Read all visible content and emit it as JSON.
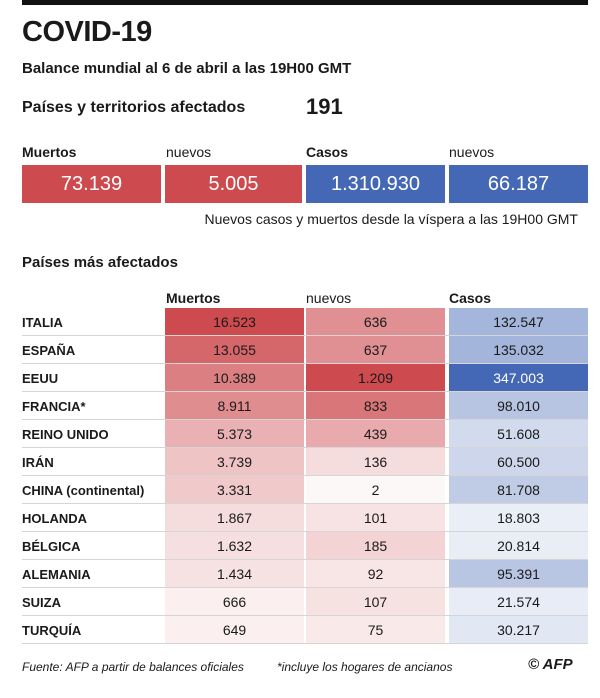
{
  "title": "COVID-19",
  "subtitle": "Balance mundial al 6 de abril a las 19H00 GMT",
  "affected": {
    "label": "Países y territorios afectados",
    "value": "191"
  },
  "totals": {
    "deaths_label": "Muertos",
    "deaths_value": "73.139",
    "new_deaths_label": "nuevos",
    "new_deaths_value": "5.005",
    "cases_label": "Casos",
    "cases_value": "1.310.930",
    "new_cases_label": "nuevos",
    "new_cases_value": "66.187",
    "note": "Nuevos casos y muertos desde la víspera a las 19H00 GMT"
  },
  "colors": {
    "red": "#cd4a4e",
    "blue": "#4468b5",
    "red_rgb": [
      205,
      74,
      78
    ],
    "blue_rgb": [
      68,
      104,
      181
    ]
  },
  "chart_data": {
    "type": "table",
    "title": "Países más afectados",
    "columns": [
      "Muertos",
      "nuevos",
      "Casos"
    ],
    "rows": [
      {
        "country": "ITALIA",
        "deaths": 16523,
        "new_deaths": 636,
        "cases": 132547,
        "deaths_text": "16.523",
        "new_text": "636",
        "cases_text": "132.547"
      },
      {
        "country": "ESPAÑA",
        "deaths": 13055,
        "new_deaths": 637,
        "cases": 135032,
        "deaths_text": "13.055",
        "new_text": "637",
        "cases_text": "135.032"
      },
      {
        "country": "EEUU",
        "deaths": 10389,
        "new_deaths": 1209,
        "cases": 347003,
        "deaths_text": "10.389",
        "new_text": "1.209",
        "cases_text": "347.003"
      },
      {
        "country": "FRANCIA*",
        "deaths": 8911,
        "new_deaths": 833,
        "cases": 98010,
        "deaths_text": "8.911",
        "new_text": "833",
        "cases_text": "98.010"
      },
      {
        "country": "REINO UNIDO",
        "deaths": 5373,
        "new_deaths": 439,
        "cases": 51608,
        "deaths_text": "5.373",
        "new_text": "439",
        "cases_text": "51.608"
      },
      {
        "country": "IRÁN",
        "deaths": 3739,
        "new_deaths": 136,
        "cases": 60500,
        "deaths_text": "3.739",
        "new_text": "136",
        "cases_text": "60.500"
      },
      {
        "country": "CHINA (continental)",
        "deaths": 3331,
        "new_deaths": 2,
        "cases": 81708,
        "deaths_text": "3.331",
        "new_text": "2",
        "cases_text": "81.708"
      },
      {
        "country": "HOLANDA",
        "deaths": 1867,
        "new_deaths": 101,
        "cases": 18803,
        "deaths_text": "1.867",
        "new_text": "101",
        "cases_text": "18.803"
      },
      {
        "country": "BÉLGICA",
        "deaths": 1632,
        "new_deaths": 185,
        "cases": 20814,
        "deaths_text": "1.632",
        "new_text": "185",
        "cases_text": "20.814"
      },
      {
        "country": "ALEMANIA",
        "deaths": 1434,
        "new_deaths": 92,
        "cases": 95391,
        "deaths_text": "1.434",
        "new_text": "92",
        "cases_text": "95.391"
      },
      {
        "country": "SUIZA",
        "deaths": 666,
        "new_deaths": 107,
        "cases": 21574,
        "deaths_text": "666",
        "new_text": "107",
        "cases_text": "21.574"
      },
      {
        "country": "TURQUÍA",
        "deaths": 649,
        "new_deaths": 75,
        "cases": 30217,
        "deaths_text": "649",
        "new_text": "75",
        "cases_text": "30.217"
      }
    ]
  },
  "footer": {
    "source": "Fuente: AFP a partir de balances oficiales",
    "note": "*incluye los hogares de ancianos",
    "logo": "© AFP"
  }
}
